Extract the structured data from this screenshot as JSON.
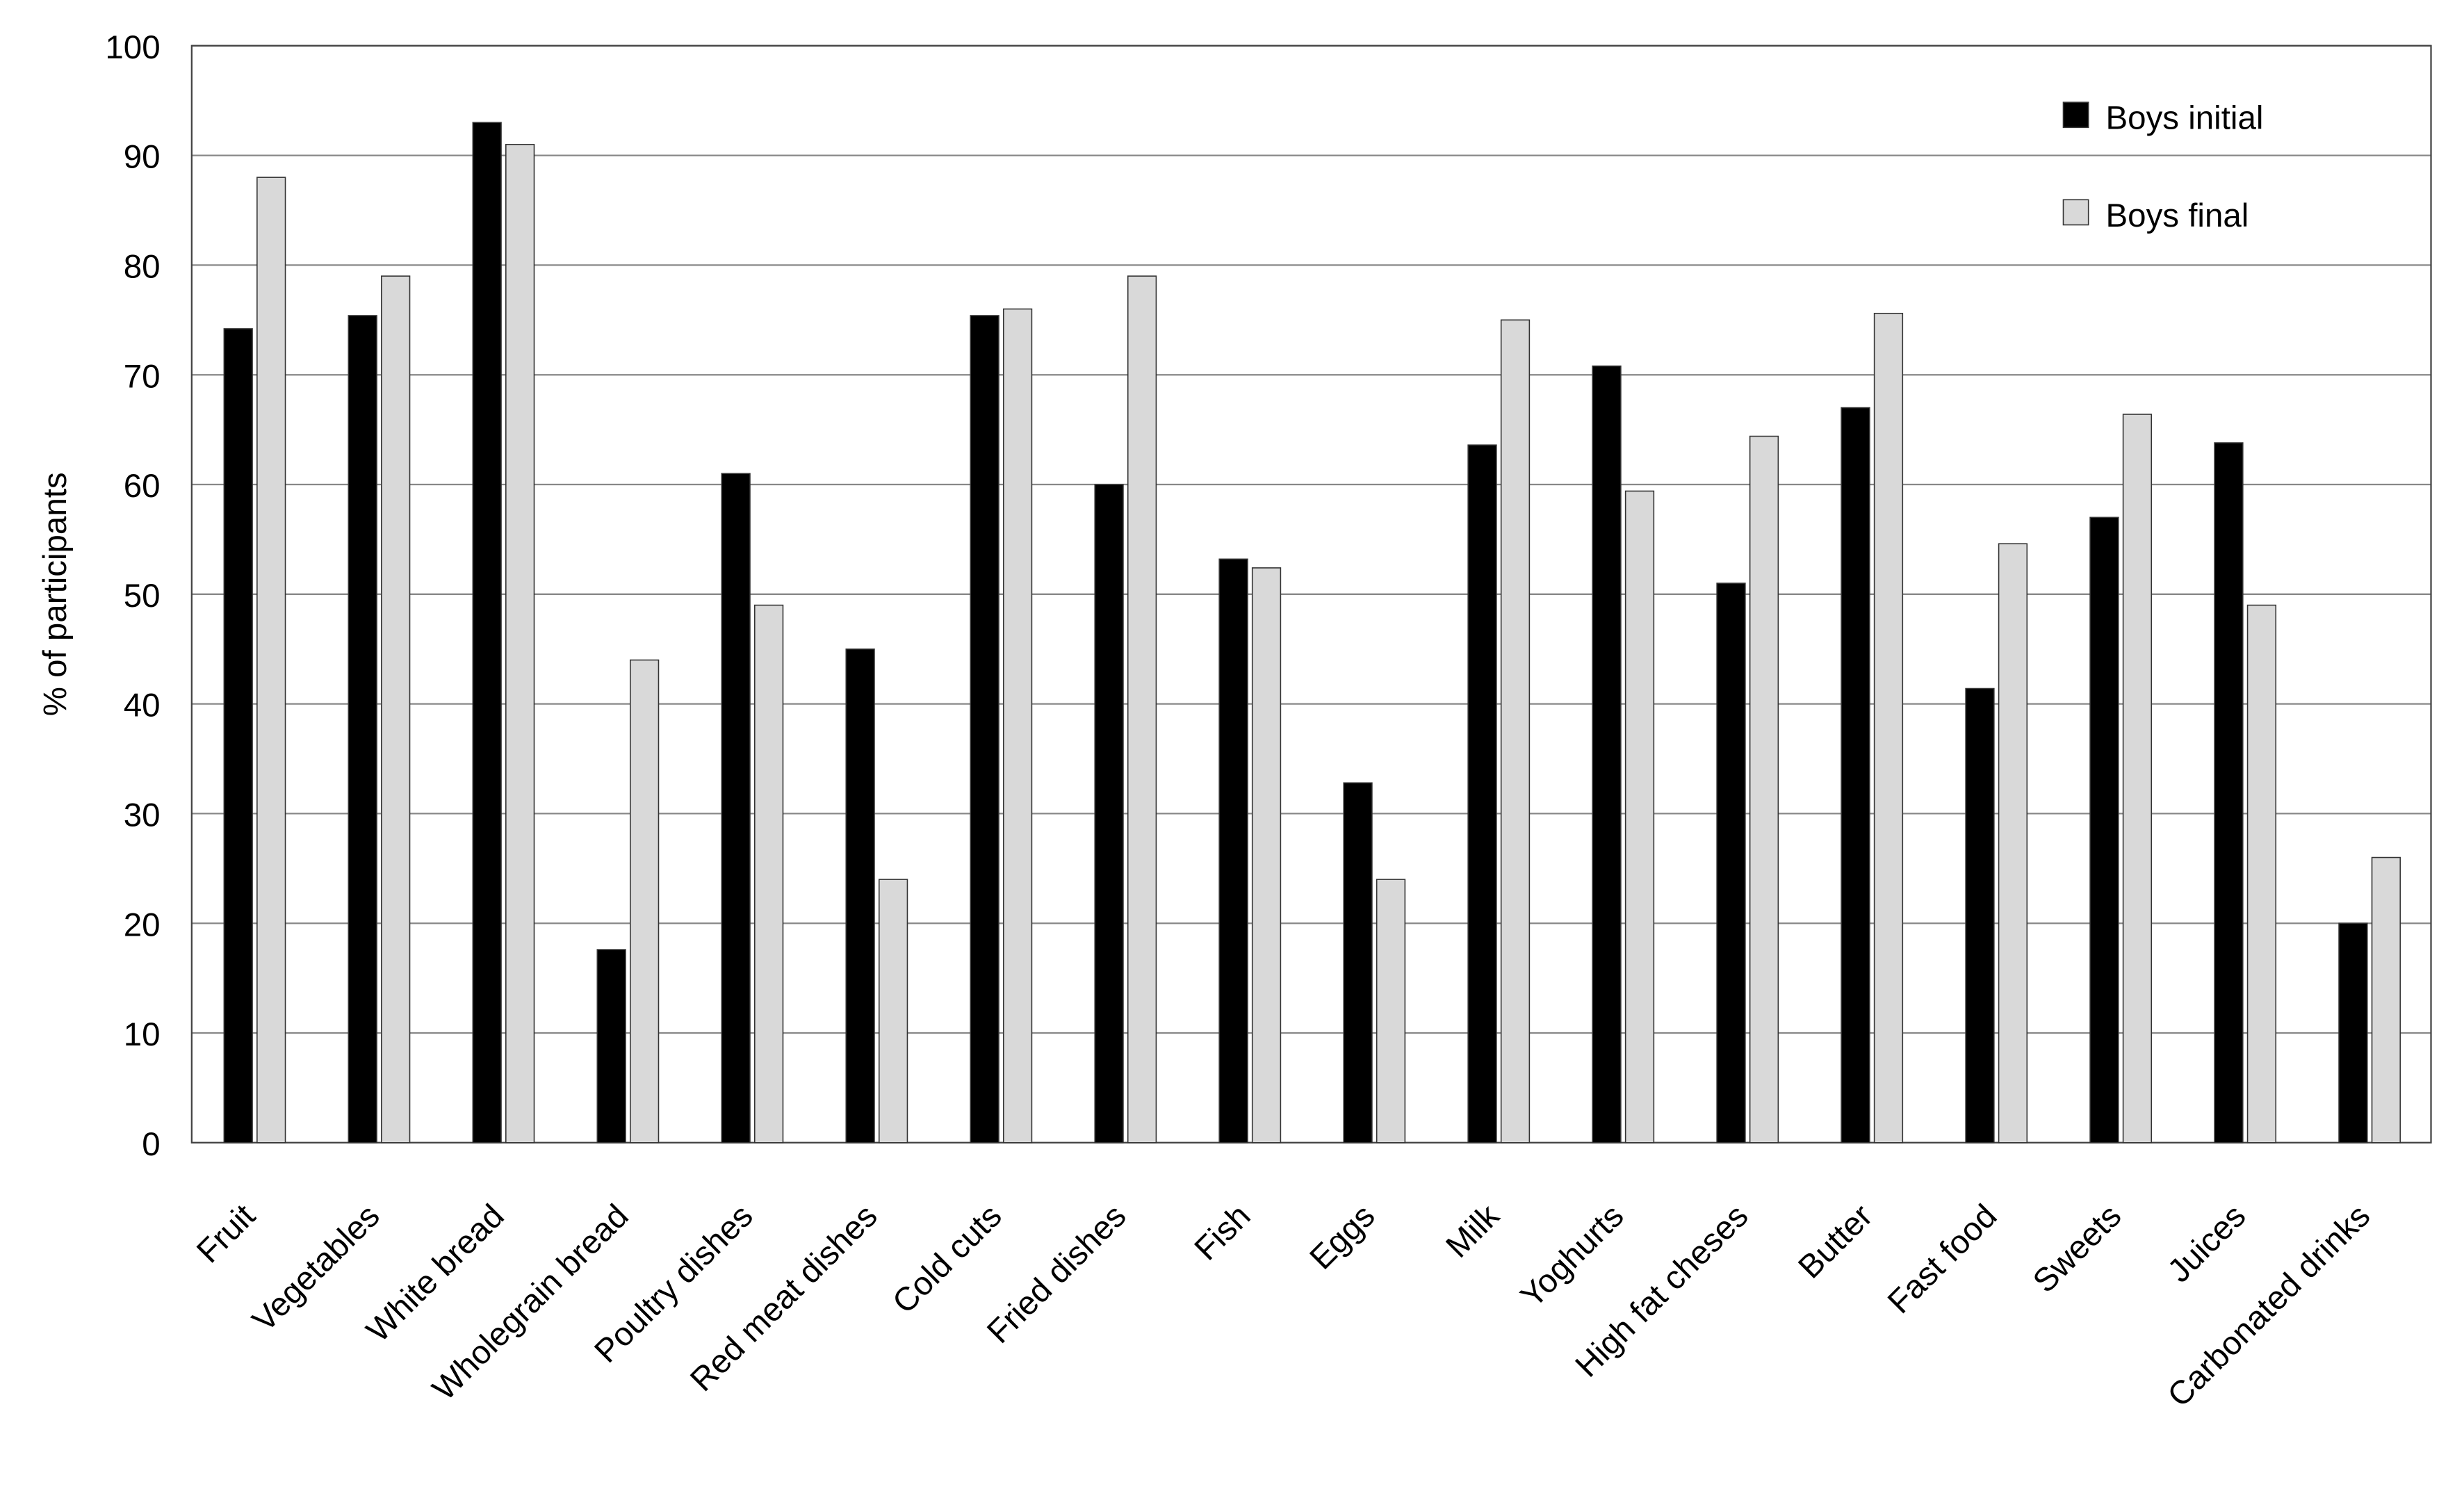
{
  "chart_data": {
    "type": "bar",
    "y_label": "% of participants",
    "categories": [
      "Fruit",
      "Vegetables",
      "White bread",
      "Wholegrain bread",
      "Poultry dishes",
      "Red meat dishes",
      "Cold cuts",
      "Fried dishes",
      "Fish",
      "Eggs",
      "Milk",
      "Yoghurts",
      "High fat cheses",
      "Butter",
      "Fast food",
      "Sweets",
      "Juices",
      "Carbonated drinks"
    ],
    "series": [
      {
        "name": "Boys initial",
        "color": "#000000",
        "values": [
          74.2,
          75.4,
          93,
          17.6,
          61,
          45,
          75.4,
          60,
          53.2,
          32.8,
          63.6,
          70.8,
          51,
          67,
          41.4,
          57,
          63.8,
          20
        ]
      },
      {
        "name": "Boys final",
        "color": "#d9d9d9",
        "values": [
          88,
          79,
          91,
          44,
          49,
          24,
          76,
          79,
          52.4,
          24,
          75,
          59.4,
          64.4,
          75.6,
          54.6,
          66.4,
          49,
          26
        ]
      }
    ],
    "ylim": [
      0,
      100
    ],
    "yticks": [
      0,
      10,
      20,
      30,
      40,
      50,
      60,
      70,
      80,
      90,
      100
    ],
    "grid": true
  }
}
